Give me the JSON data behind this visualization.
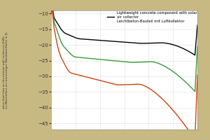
{
  "background_color": "#c8b882",
  "plot_bg_color": "#ffffff",
  "ylim": [
    -47,
    -9
  ],
  "yticks": [
    -10,
    -15,
    -20,
    -25,
    -30,
    -35,
    -40,
    -45
  ],
  "legend_black": "Lightweight concrete component with solar\nair collector\nLeichtbeton-Bauteil mit Luftkollektor",
  "line_colors": [
    "#000000",
    "#3a9a3a",
    "#cc4411"
  ],
  "grid_color": "#bbbbbb",
  "ylabel_line1": "ative heat flow on the interior wall surface in [kWh",
  "ylabel_line2": "en-Wärmefluss an raumseitiger Wandoberfläche in [k"
}
